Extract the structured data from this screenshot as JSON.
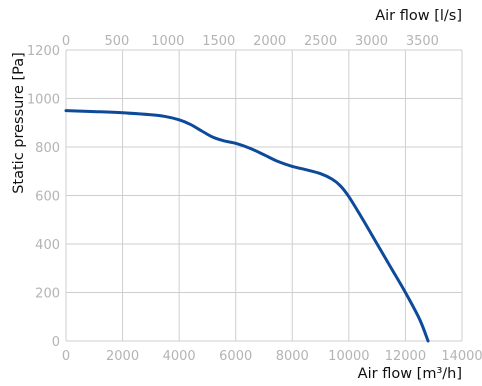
{
  "chart_data": {
    "type": "line",
    "x_label": "Air flow [m³/h]",
    "x2_label": "Air flow [l/s]",
    "y_label": "Static pressure [Pa]",
    "x_range": [
      0,
      14000
    ],
    "x2_range": [
      0,
      3888.9
    ],
    "y_range": [
      0,
      1200
    ],
    "x_ticks": [
      0,
      2000,
      4000,
      6000,
      8000,
      10000,
      12000,
      14000
    ],
    "x2_ticks": [
      0,
      500,
      1000,
      1500,
      2000,
      2500,
      3000,
      3500
    ],
    "y_ticks": [
      0,
      200,
      400,
      600,
      800,
      1000,
      1200
    ],
    "grid": true,
    "colors": {
      "curve": "#0d4a9a",
      "grid": "#cfcfcf",
      "tick_text": "#b4b4b4"
    },
    "series": [
      {
        "x": [
          0,
          1000,
          2000,
          3000,
          3500,
          4000,
          4400,
          4800,
          5200,
          5600,
          6000,
          6500,
          7000,
          7500,
          8000,
          8500,
          9000,
          9400,
          9700,
          10000,
          10500,
          11000,
          11500,
          12000,
          12500,
          12800
        ],
        "y": [
          950,
          946,
          941,
          933,
          926,
          912,
          893,
          866,
          840,
          825,
          815,
          795,
          768,
          740,
          720,
          706,
          690,
          668,
          640,
          595,
          500,
          400,
          300,
          200,
          90,
          0
        ]
      }
    ]
  }
}
